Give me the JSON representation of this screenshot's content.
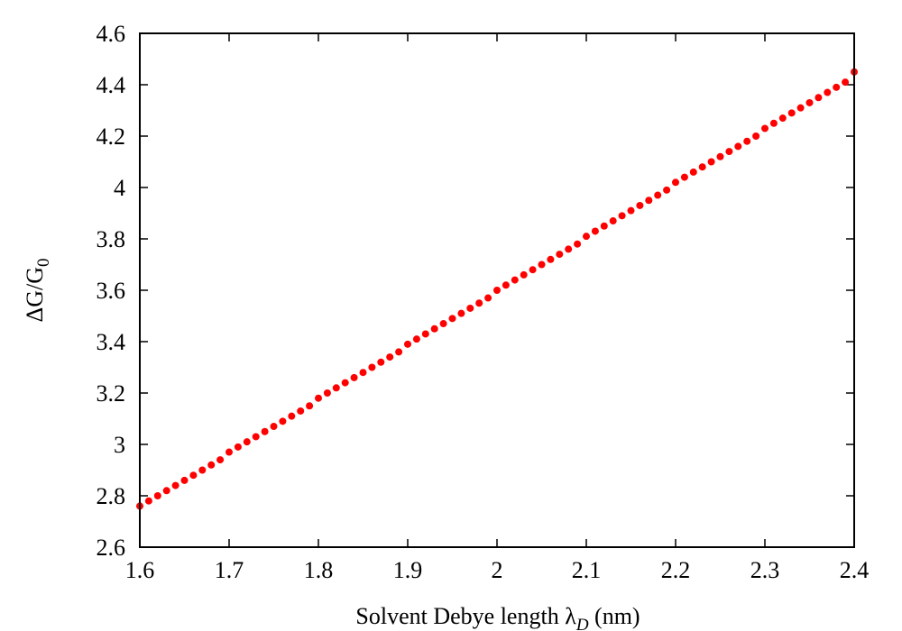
{
  "chart_data": {
    "type": "scatter",
    "title": "",
    "xlabel": {
      "main": "Solvent Debye length ",
      "symbol": "λ",
      "subscript": "D",
      "unit": " (nm)"
    },
    "ylabel": {
      "main": "ΔG/G",
      "subscript": "0"
    },
    "xlim": [
      1.6,
      2.4
    ],
    "ylim": [
      2.6,
      4.6
    ],
    "xticks": [
      {
        "value": 1.6,
        "label": "1.6"
      },
      {
        "value": 1.7,
        "label": "1.7"
      },
      {
        "value": 1.8,
        "label": "1.8"
      },
      {
        "value": 1.9,
        "label": "1.9"
      },
      {
        "value": 2.0,
        "label": "2"
      },
      {
        "value": 2.1,
        "label": "2.1"
      },
      {
        "value": 2.2,
        "label": "2.2"
      },
      {
        "value": 2.3,
        "label": "2.3"
      },
      {
        "value": 2.4,
        "label": "2.4"
      }
    ],
    "yticks": [
      {
        "value": 2.6,
        "label": "2.6"
      },
      {
        "value": 2.8,
        "label": "2.8"
      },
      {
        "value": 3.0,
        "label": "3"
      },
      {
        "value": 3.2,
        "label": "3.2"
      },
      {
        "value": 3.4,
        "label": "3.4"
      },
      {
        "value": 3.6,
        "label": "3.6"
      },
      {
        "value": 3.8,
        "label": "3.8"
      },
      {
        "value": 4.0,
        "label": "4"
      },
      {
        "value": 4.2,
        "label": "4.2"
      },
      {
        "value": 4.4,
        "label": "4.4"
      },
      {
        "value": 4.6,
        "label": "4.6"
      }
    ],
    "grid": false,
    "legend": "none",
    "series": [
      {
        "color": "#ff0000",
        "marker": "circle",
        "x": [
          1.6,
          1.61,
          1.62,
          1.63,
          1.64,
          1.65,
          1.66,
          1.67,
          1.68,
          1.69,
          1.7,
          1.71,
          1.72,
          1.73,
          1.74,
          1.75,
          1.76,
          1.77,
          1.78,
          1.79,
          1.8,
          1.81,
          1.82,
          1.83,
          1.84,
          1.85,
          1.86,
          1.87,
          1.88,
          1.89,
          1.9,
          1.91,
          1.92,
          1.93,
          1.94,
          1.95,
          1.96,
          1.97,
          1.98,
          1.99,
          2.0,
          2.01,
          2.02,
          2.03,
          2.04,
          2.05,
          2.06,
          2.07,
          2.08,
          2.09,
          2.1,
          2.11,
          2.12,
          2.13,
          2.14,
          2.15,
          2.16,
          2.17,
          2.18,
          2.19,
          2.2,
          2.21,
          2.22,
          2.23,
          2.24,
          2.25,
          2.26,
          2.27,
          2.28,
          2.29,
          2.3,
          2.31,
          2.32,
          2.33,
          2.34,
          2.35,
          2.36,
          2.37,
          2.38,
          2.39,
          2.4
        ],
        "y": [
          2.76,
          2.78,
          2.8,
          2.82,
          2.84,
          2.86,
          2.88,
          2.9,
          2.92,
          2.94,
          2.97,
          2.99,
          3.01,
          3.03,
          3.05,
          3.07,
          3.09,
          3.11,
          3.13,
          3.15,
          3.18,
          3.2,
          3.22,
          3.24,
          3.26,
          3.28,
          3.3,
          3.32,
          3.34,
          3.36,
          3.39,
          3.41,
          3.43,
          3.45,
          3.47,
          3.49,
          3.51,
          3.53,
          3.55,
          3.57,
          3.6,
          3.62,
          3.64,
          3.66,
          3.68,
          3.7,
          3.72,
          3.74,
          3.76,
          3.78,
          3.81,
          3.83,
          3.85,
          3.87,
          3.89,
          3.91,
          3.93,
          3.95,
          3.97,
          3.99,
          4.02,
          4.04,
          4.06,
          4.08,
          4.1,
          4.12,
          4.14,
          4.16,
          4.18,
          4.2,
          4.23,
          4.25,
          4.27,
          4.29,
          4.31,
          4.33,
          4.35,
          4.37,
          4.39,
          4.41,
          4.45
        ]
      }
    ]
  }
}
